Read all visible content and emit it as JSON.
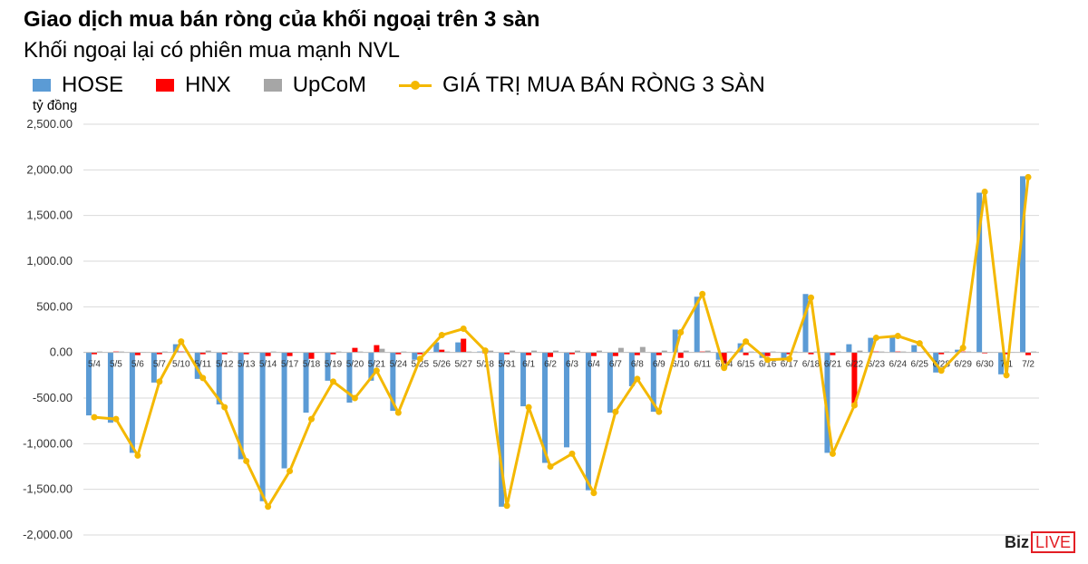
{
  "chart_data": {
    "type": "bar",
    "title": "Giao dịch mua bán ròng của khối ngoại trên 3 sàn",
    "subtitle": "Khối ngoại lại có phiên mua mạnh NVL",
    "ylabel": "tỷ đồng",
    "ylim": [
      -2000,
      2500
    ],
    "yticks": [
      "2,500.00",
      "2,000.00",
      "1,500.00",
      "1,000.00",
      "500.00",
      "0.00",
      "-500.00",
      "-1,000.00",
      "-1,500.00",
      "-2,000.00"
    ],
    "grid": true,
    "legend_position": "top",
    "categories": [
      "5/4",
      "5/5",
      "5/6",
      "5/7",
      "5/10",
      "5/11",
      "5/12",
      "5/13",
      "5/14",
      "5/17",
      "5/18",
      "5/19",
      "5/20",
      "5/21",
      "5/24",
      "5/25",
      "5/26",
      "5/27",
      "5/28",
      "5/31",
      "6/1",
      "6/2",
      "6/3",
      "6/4",
      "6/7",
      "6/8",
      "6/9",
      "6/10",
      "6/11",
      "6/14",
      "6/15",
      "6/16",
      "6/17",
      "6/18",
      "6/21",
      "6/22",
      "6/23",
      "6/24",
      "6/25",
      "6/28",
      "6/29",
      "6/30",
      "7/1",
      "7/2"
    ],
    "series": [
      {
        "name": "HOSE",
        "kind": "bar",
        "color": "#5B9BD5",
        "values": [
          -690,
          -770,
          -1100,
          -330,
          90,
          -290,
          -570,
          -1170,
          -1630,
          -1270,
          -660,
          -310,
          -550,
          -310,
          -640,
          -80,
          110,
          110,
          10,
          -1690,
          -590,
          -1210,
          -1040,
          -1510,
          -660,
          -370,
          -650,
          250,
          610,
          -80,
          100,
          -60,
          -70,
          640,
          -1100,
          90,
          160,
          170,
          80,
          -220,
          30,
          1750,
          -240,
          1930
        ]
      },
      {
        "name": "HNX",
        "kind": "bar",
        "color": "#FF0000",
        "values": [
          -20,
          10,
          -30,
          -20,
          10,
          -20,
          -20,
          -20,
          -40,
          -40,
          -70,
          -20,
          50,
          80,
          -20,
          -20,
          30,
          150,
          -10,
          -20,
          -30,
          -50,
          -20,
          -40,
          -40,
          -30,
          -30,
          -60,
          10,
          -120,
          -30,
          -40,
          -20,
          -20,
          -30,
          -600,
          10,
          10,
          5,
          -20,
          10,
          -10,
          -20,
          -30
        ]
      },
      {
        "name": "UpCoM",
        "kind": "bar",
        "color": "#A6A6A6",
        "values": [
          10,
          10,
          5,
          10,
          10,
          20,
          10,
          5,
          10,
          5,
          5,
          10,
          10,
          40,
          10,
          10,
          10,
          10,
          20,
          20,
          20,
          20,
          20,
          20,
          50,
          60,
          20,
          20,
          20,
          10,
          10,
          10,
          10,
          10,
          10,
          20,
          10,
          10,
          10,
          10,
          10,
          5,
          5,
          10
        ]
      },
      {
        "name": "GIÁ TRỊ MUA BÁN RÒNG 3 SÀN",
        "kind": "line",
        "color": "#F4B800",
        "values": [
          -710,
          -730,
          -1130,
          -320,
          120,
          -280,
          -600,
          -1190,
          -1690,
          -1300,
          -730,
          -320,
          -500,
          -200,
          -660,
          -70,
          190,
          260,
          20,
          -1680,
          -600,
          -1250,
          -1110,
          -1540,
          -650,
          -290,
          -650,
          220,
          640,
          -170,
          120,
          -80,
          -70,
          600,
          -1110,
          -580,
          160,
          180,
          100,
          -200,
          50,
          1760,
          -250,
          1920
        ]
      }
    ]
  },
  "logo": {
    "biz": "Biz",
    "live": "LIVE"
  }
}
